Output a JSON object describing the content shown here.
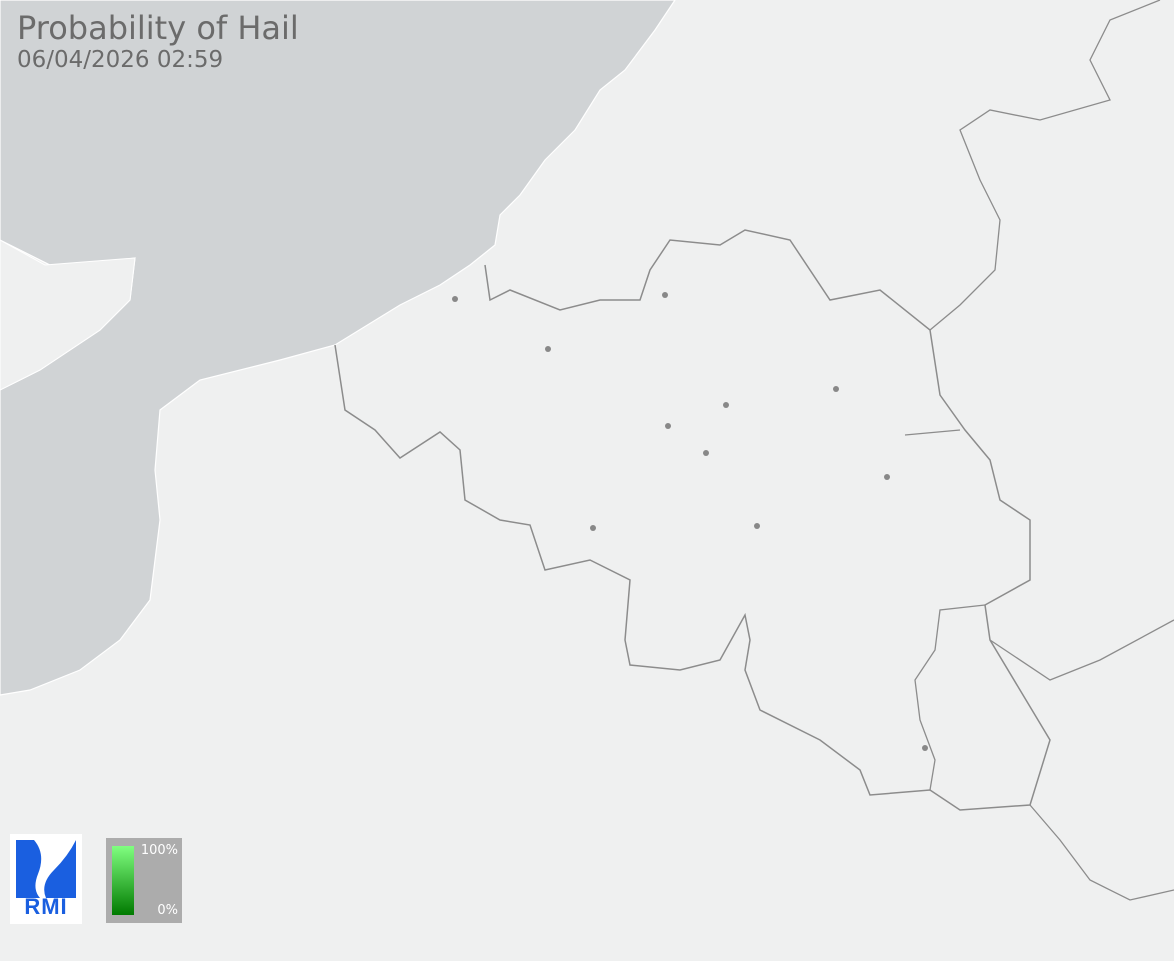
{
  "header": {
    "title": "Probability of Hail",
    "timestamp": "06/04/2026 02:59"
  },
  "logo": {
    "text": "RMI",
    "color": "#1a5fe0"
  },
  "legend": {
    "max_label": "100%",
    "min_label": "0%",
    "color_top": "#80ff80",
    "color_bottom": "#007a00"
  },
  "colors": {
    "land": "#eff0f0",
    "sea": "#d0d3d5",
    "border": "#8c8c8c",
    "city": "#888888"
  }
}
